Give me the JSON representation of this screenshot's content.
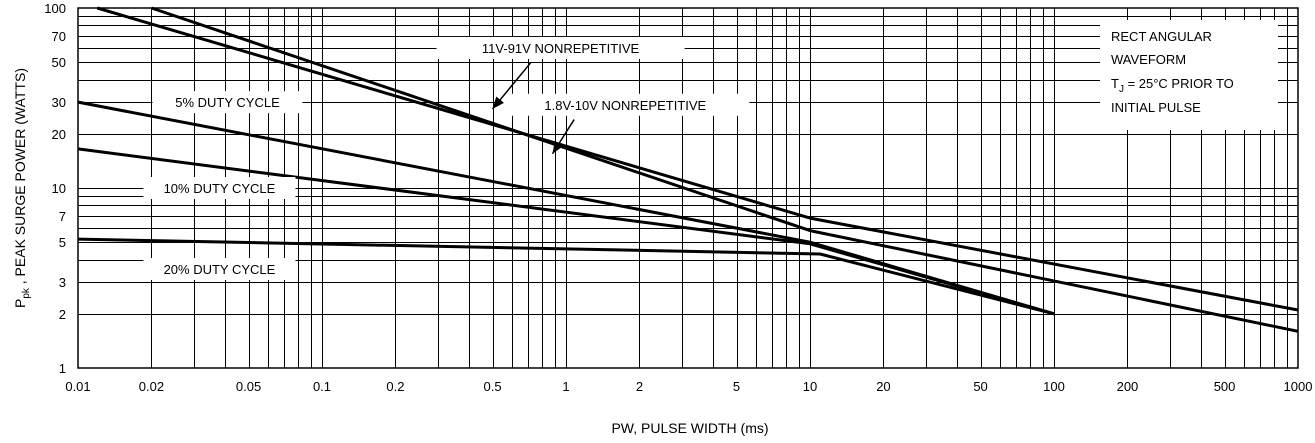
{
  "chart_data": {
    "type": "line",
    "xlabel": "PW, PULSE WIDTH (ms)",
    "ylabel": "PEAK SURGE POWER (WATTS)",
    "ylabel_symbol": "P",
    "ylabel_subscript": "pk",
    "ylabel_sep": " , ",
    "x_scale": "log",
    "y_scale": "log",
    "xlim": [
      0.01,
      1000
    ],
    "ylim": [
      1,
      100
    ],
    "grid": true,
    "x_ticks": [
      0.01,
      0.02,
      0.05,
      0.1,
      0.2,
      0.5,
      1,
      2,
      5,
      10,
      20,
      50,
      100,
      200,
      500,
      1000
    ],
    "x_tick_labels": [
      "0.01",
      "0.02",
      "0.05",
      "0.1",
      "0.2",
      "0.5",
      "1",
      "2",
      "5",
      "10",
      "20",
      "50",
      "100",
      "200",
      "500",
      "1000"
    ],
    "y_ticks": [
      1,
      2,
      3,
      5,
      7,
      10,
      20,
      30,
      50,
      70,
      100
    ],
    "y_tick_labels": [
      "1",
      "2",
      "3",
      "5",
      "7",
      "10",
      "20",
      "30",
      "50",
      "70",
      "100"
    ],
    "series": [
      {
        "name": "11V-91V NONREPETITIVE",
        "x": [
          0.012,
          10,
          1000
        ],
        "y": [
          100,
          6.8,
          2.1
        ]
      },
      {
        "name": "1.8V-10V NONREPETITIVE",
        "x": [
          0.02,
          10,
          1000
        ],
        "y": [
          100,
          5.8,
          1.6
        ]
      },
      {
        "name": "5% DUTY CYCLE",
        "x": [
          0.01,
          10,
          100
        ],
        "y": [
          30,
          5.0,
          2.0
        ]
      },
      {
        "name": "10% DUTY CYCLE",
        "x": [
          0.01,
          10,
          100
        ],
        "y": [
          16.5,
          4.9,
          2.0
        ]
      },
      {
        "name": "20% DUTY CYCLE",
        "x": [
          0.01,
          11,
          100
        ],
        "y": [
          5.2,
          4.3,
          2.0
        ]
      }
    ],
    "annotations": {
      "waveform_line1": "RECT ANGULAR",
      "waveform_line2": "WAVEFORM",
      "tj_symbol": "T",
      "tj_subscript": "J",
      "tj_rest": " = 25°C PRIOR TO",
      "waveform_line4": "INITIAL PULSE"
    }
  }
}
